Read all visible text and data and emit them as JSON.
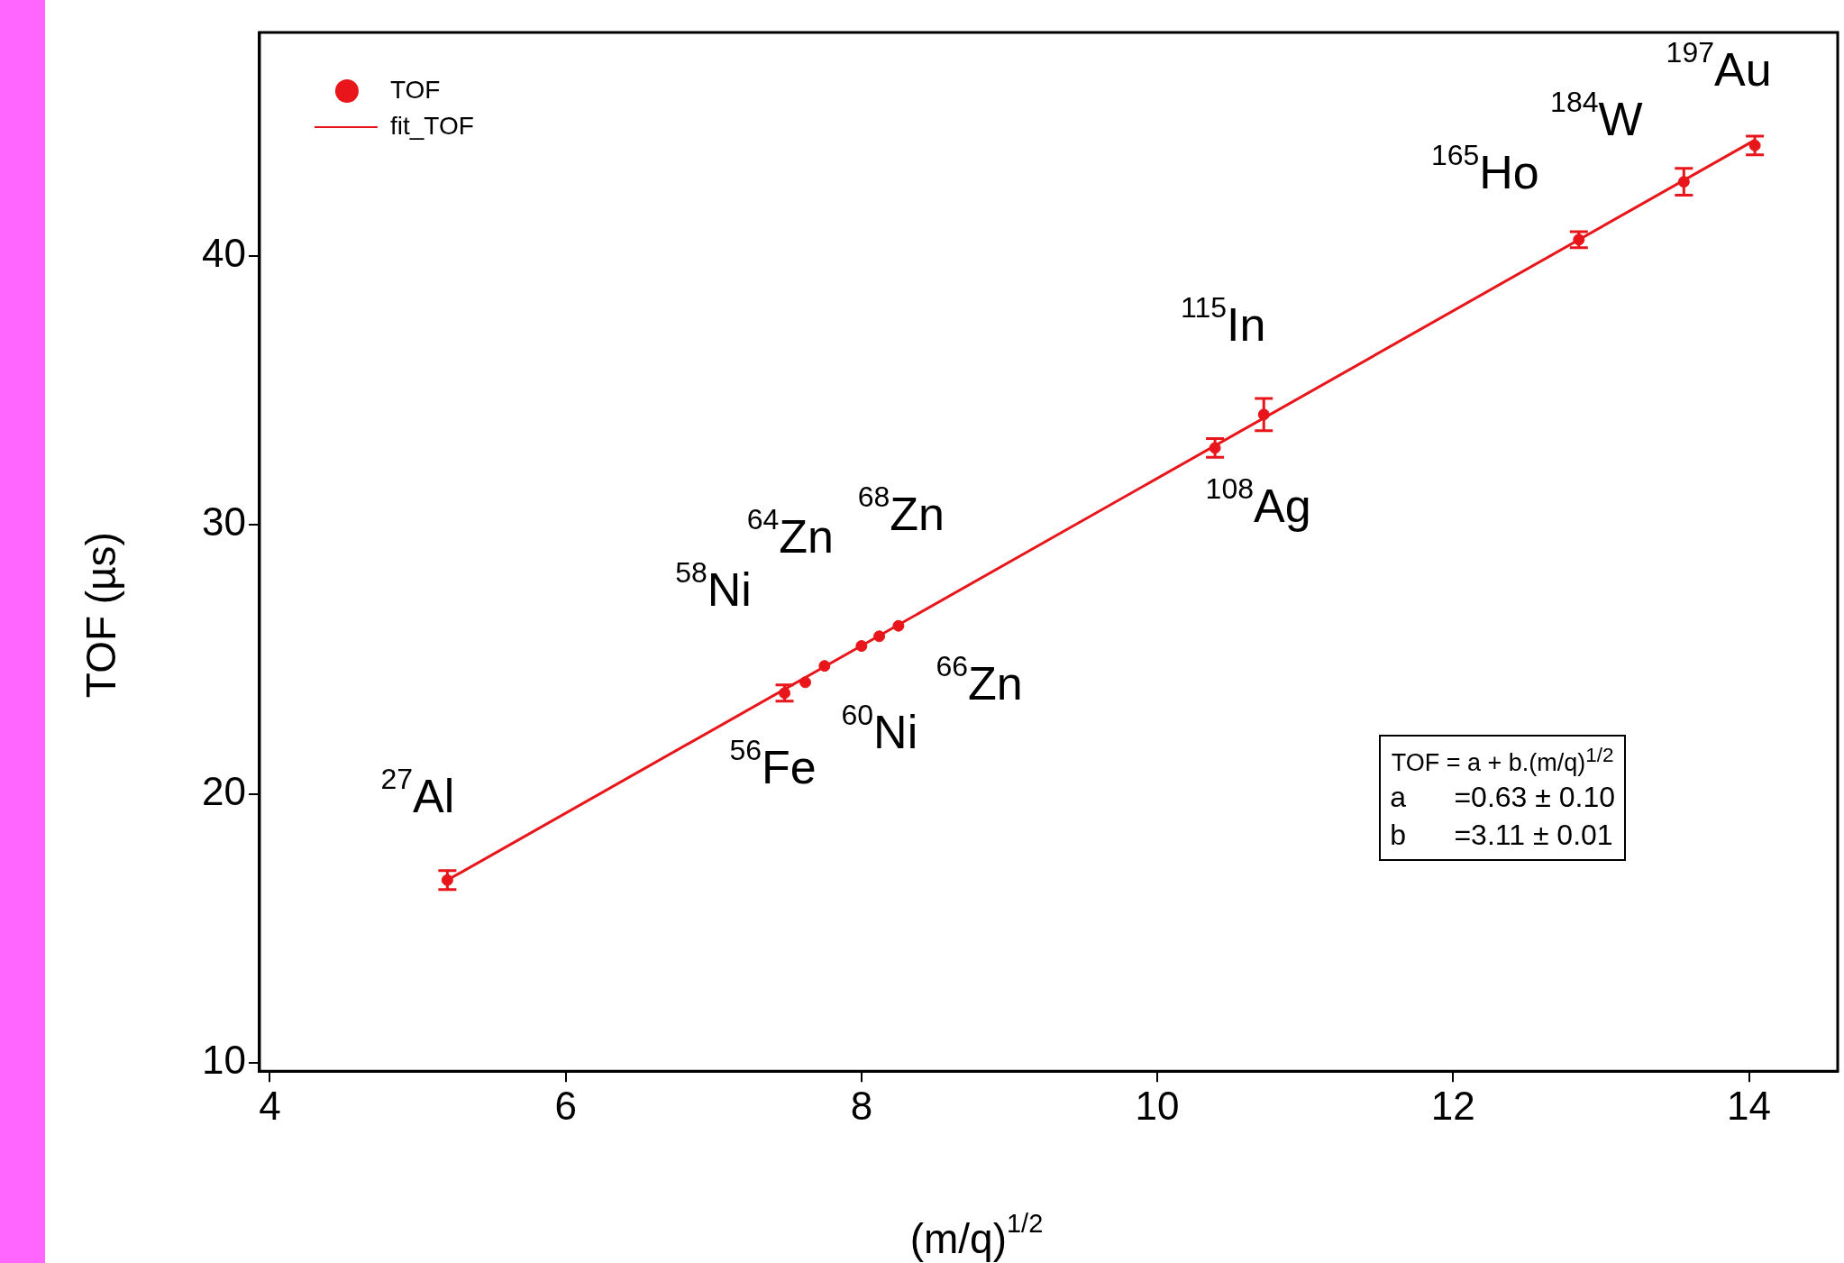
{
  "chart_data": {
    "type": "scatter",
    "xlabel": "(m/q)$^{1/2}$",
    "ylabel": "TOF (µs)",
    "xlim": [
      3.93,
      14.6
    ],
    "ylim": [
      9.7,
      48.3
    ],
    "xticks": [
      4,
      6,
      8,
      10,
      12,
      14
    ],
    "yticks": [
      10,
      20,
      30,
      40
    ],
    "grid": false,
    "legend": "top left",
    "marker": "circle",
    "series": [
      {
        "name": "TOF",
        "color": "#e8161b",
        "x": [
          5.2,
          7.48,
          7.62,
          7.75,
          8.0,
          8.12,
          8.25,
          10.39,
          10.72,
          12.85,
          13.56,
          14.04
        ],
        "values": [
          16.8,
          23.75,
          24.15,
          24.76,
          25.5,
          25.86,
          26.25,
          32.86,
          34.1,
          40.6,
          42.75,
          44.1
        ],
        "errors": [
          0.35,
          0.3,
          null,
          null,
          null,
          null,
          null,
          0.35,
          0.6,
          0.3,
          0.5,
          0.35
        ]
      },
      {
        "name": "fit_TOF",
        "type": "line",
        "marker": "none",
        "color": "#e8161b",
        "x": [
          5.2,
          14.04
        ],
        "values": [
          16.8,
          44.3
        ]
      }
    ],
    "annotations": [
      {
        "text": "$^{27}$Al",
        "x": 5.2,
        "y": 16.8
      },
      {
        "text": "$^{56}$Fe",
        "x": 7.48,
        "y": 23.75
      },
      {
        "text": "$^{60}$Ni",
        "x": 7.75,
        "y": 24.76
      },
      {
        "text": "$^{66}$Zn",
        "x": 8.12,
        "y": 25.86
      },
      {
        "text": "$^{58}$Ni",
        "x": 7.62,
        "y": 24.15
      },
      {
        "text": "$^{64}$Zn",
        "x": 8.0,
        "y": 25.5
      },
      {
        "text": "$^{68}$Zn",
        "x": 8.25,
        "y": 26.25
      },
      {
        "text": "$^{108}$Ag",
        "x": 10.39,
        "y": 32.86
      },
      {
        "text": "$^{115}$In",
        "x": 10.72,
        "y": 34.1
      },
      {
        "text": "$^{165}$Ho",
        "x": 12.85,
        "y": 40.6
      },
      {
        "text": "$^{184}$W",
        "x": 13.56,
        "y": 42.75
      },
      {
        "text": "$^{197}$Au",
        "x": 14.04,
        "y": 44.1
      },
      "TOF = a + b.(m/q)$^{1/2}$",
      "a      =0.63 ± 0.10",
      "b      =3.11 ± 0.01"
    ]
  }
}
